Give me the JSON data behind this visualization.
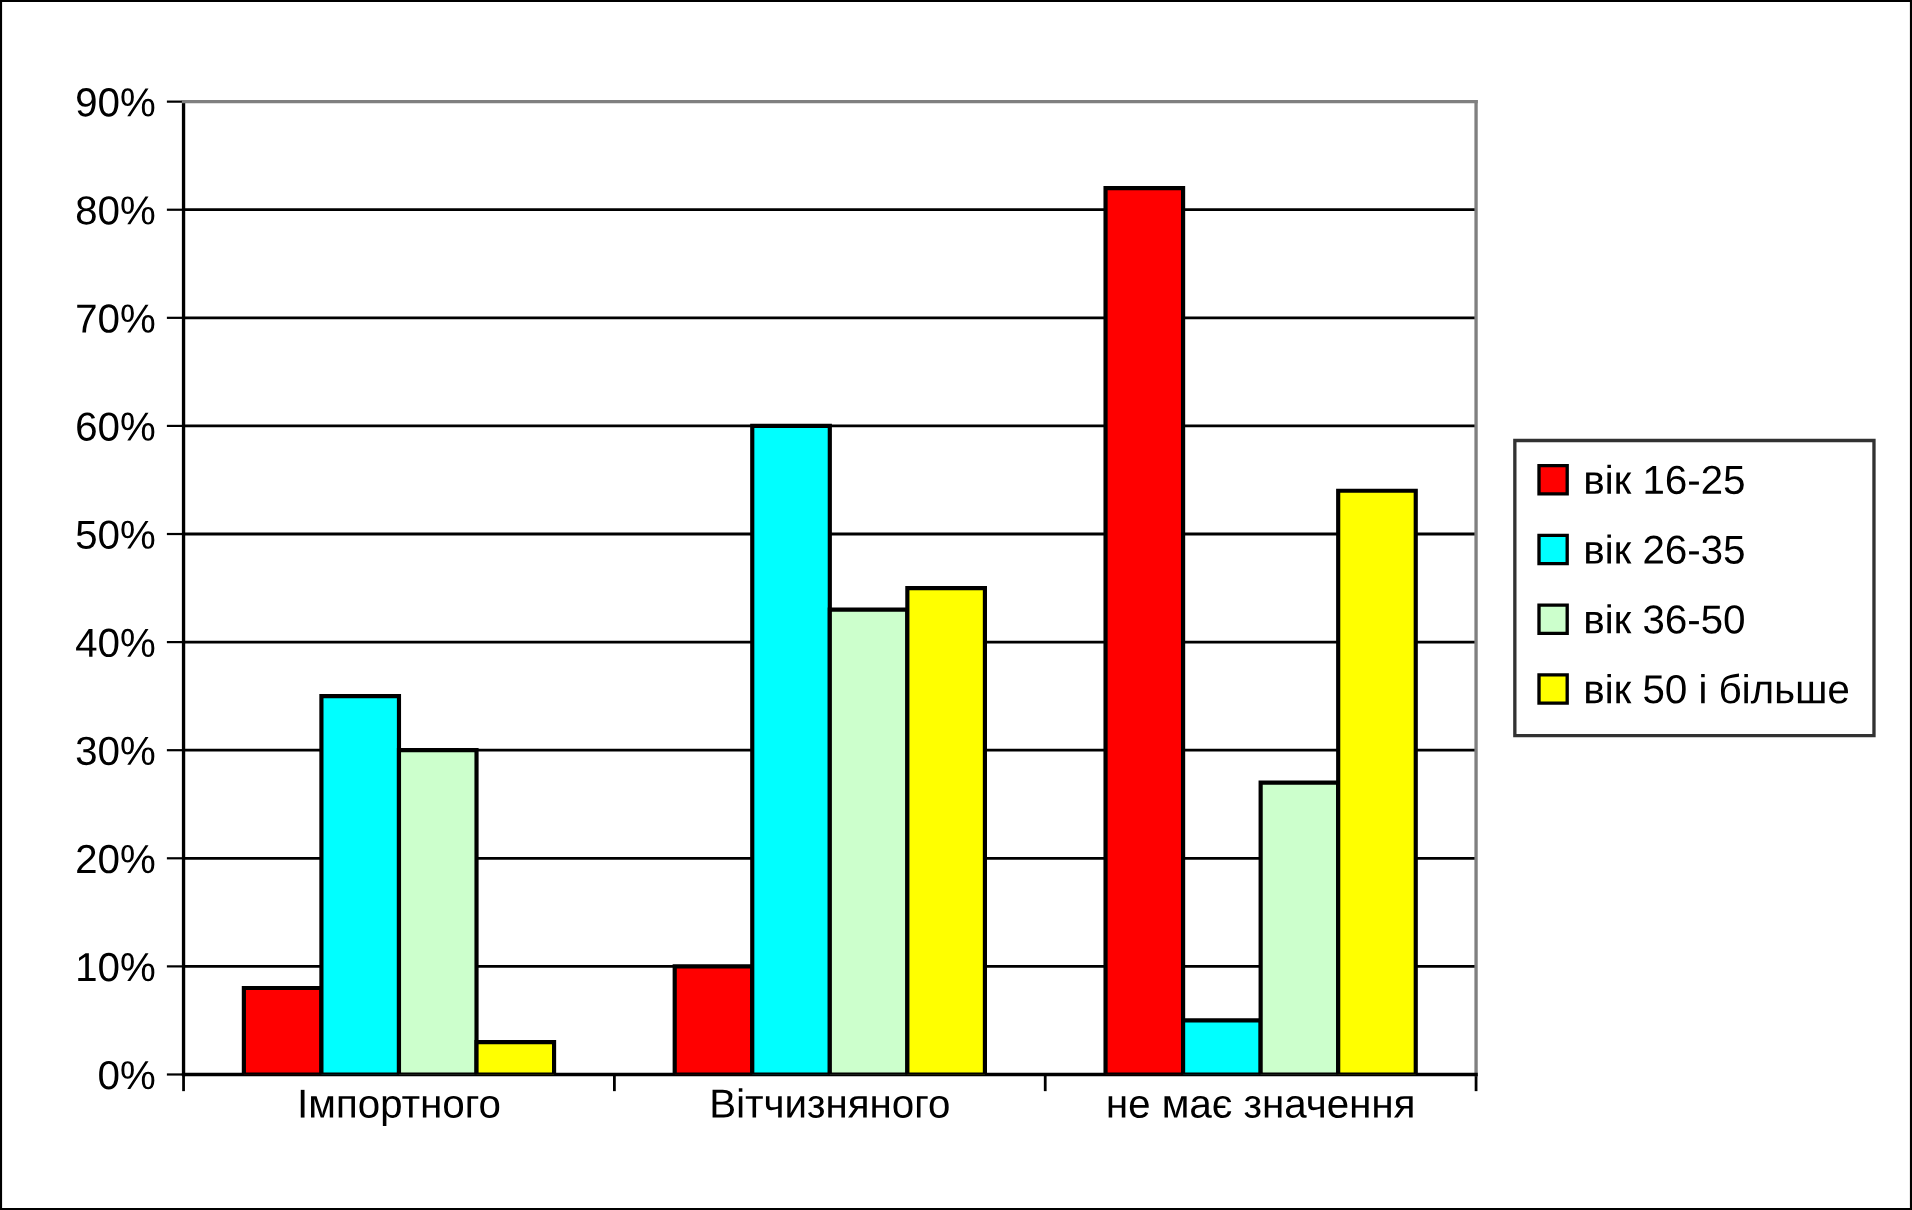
{
  "chart_data": {
    "type": "bar",
    "categories": [
      "Імпортного",
      "Вітчизняного",
      "не має значення"
    ],
    "series": [
      {
        "name": "вік 16-25",
        "color": "#ff0000",
        "values": [
          8,
          10,
          82
        ]
      },
      {
        "name": "вік 26-35",
        "color": "#00ffff",
        "values": [
          35,
          60,
          5
        ]
      },
      {
        "name": "вік 36-50",
        "color": "#ccffcc",
        "values": [
          30,
          43,
          27
        ]
      },
      {
        "name": "вік 50 і більше",
        "color": "#ffff00",
        "values": [
          3,
          45,
          54
        ]
      }
    ],
    "ylim": [
      0,
      90
    ],
    "yticks": [
      {
        "value": 0,
        "label": "0%"
      },
      {
        "value": 10,
        "label": "10%"
      },
      {
        "value": 20,
        "label": "20%"
      },
      {
        "value": 30,
        "label": "30%"
      },
      {
        "value": 40,
        "label": "40%"
      },
      {
        "value": 50,
        "label": "50%"
      },
      {
        "value": 60,
        "label": "60%"
      },
      {
        "value": 70,
        "label": "70%"
      },
      {
        "value": 80,
        "label": "80%"
      },
      {
        "value": 90,
        "label": "90%"
      }
    ],
    "grid": "y",
    "legend": "right"
  }
}
